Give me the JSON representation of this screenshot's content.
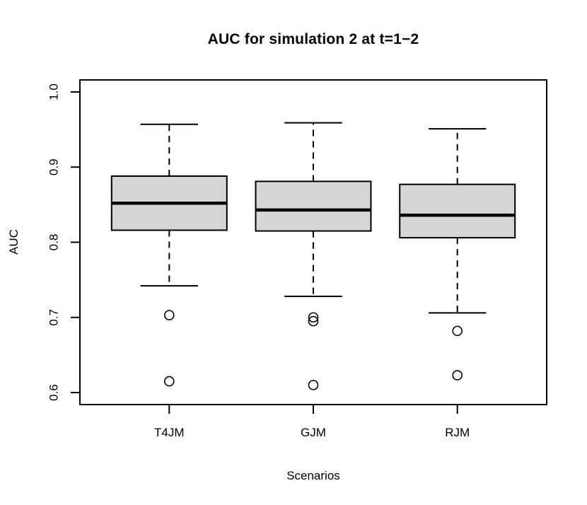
{
  "chart_data": {
    "type": "boxplot",
    "title": "AUC for simulation 2 at t=1−2",
    "xlabel": "Scenarios",
    "ylabel": "AUC",
    "categories": [
      "T4JM",
      "GJM",
      "RJM"
    ],
    "y_ticks": [
      "0.6",
      "0.7",
      "0.8",
      "0.9",
      "1.0"
    ],
    "ylim": [
      0.6,
      1.0
    ],
    "grid": "off",
    "legend": "none",
    "box_fill": "#d6d6d6",
    "line_color": "#000000",
    "series": [
      {
        "name": "T4JM",
        "whisker_low": 0.742,
        "q1": 0.816,
        "median": 0.852,
        "q3": 0.888,
        "whisker_high": 0.957,
        "outliers": [
          0.703,
          0.615
        ]
      },
      {
        "name": "GJM",
        "whisker_low": 0.728,
        "q1": 0.815,
        "median": 0.843,
        "q3": 0.881,
        "whisker_high": 0.959,
        "outliers": [
          0.7,
          0.695,
          0.61
        ]
      },
      {
        "name": "RJM",
        "whisker_low": 0.706,
        "q1": 0.806,
        "median": 0.836,
        "q3": 0.877,
        "whisker_high": 0.951,
        "outliers": [
          0.682,
          0.623
        ]
      }
    ]
  }
}
